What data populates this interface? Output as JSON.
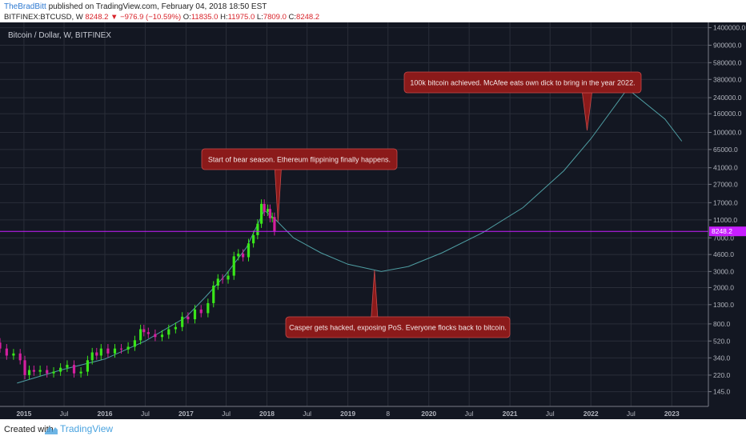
{
  "header": {
    "author": "TheBradBitt",
    "published_text": "published on TradingView.com, February 04, 2018 18:50 EST",
    "symbol": "BITFINEX:BTCUSD, W",
    "last": "8248.2",
    "change": "−976.9 (−10.59%)",
    "o_label": "O:",
    "o_value": "11835.0",
    "h_label": "H:",
    "h_value": "11975.0",
    "l_label": "L:",
    "l_value": "7809.0",
    "c_label": "C:",
    "c_value": "8248.2"
  },
  "footer": {
    "created_with": "Created with",
    "brand": "TradingView"
  },
  "colors": {
    "background": "#131722",
    "grid": "#2a2e39",
    "candle_up": "#39e619",
    "candle_down": "#d41f9f",
    "projection": "#4f9ea3",
    "price_line": "#c81eff",
    "price_tag": "#c81eff",
    "callout_bg": "#8b1a1a",
    "callout_border": "#c94a4a"
  },
  "chart_data": {
    "type": "candlestick",
    "title": "Bitcoin / Dollar, W, BITFINEX",
    "y_scale": "log",
    "ylim": [
      100,
      1600000
    ],
    "xlim": [
      "2014-09-15",
      "2023-06-15"
    ],
    "y_ticks": [
      "1400000.0",
      "900000.0",
      "580000.0",
      "380000.0",
      "240000.0",
      "160000.0",
      "100000.0",
      "65000.0",
      "41000.0",
      "27000.0",
      "17000.0",
      "11000.0",
      "7000.0",
      "4600.0",
      "3000.0",
      "2000.0",
      "1300.0",
      "800.0",
      "520.0",
      "340.0",
      "220.0",
      "145.0"
    ],
    "x_ticks": [
      {
        "label": "2015",
        "date": "2015-01-01",
        "bold": true
      },
      {
        "label": "Jul",
        "date": "2015-07-01",
        "bold": false
      },
      {
        "label": "2016",
        "date": "2016-01-01",
        "bold": true
      },
      {
        "label": "Jul",
        "date": "2016-07-01",
        "bold": false
      },
      {
        "label": "2017",
        "date": "2017-01-01",
        "bold": true
      },
      {
        "label": "Jul",
        "date": "2017-07-01",
        "bold": false
      },
      {
        "label": "2018",
        "date": "2018-01-01",
        "bold": true
      },
      {
        "label": "Jul",
        "date": "2018-07-01",
        "bold": false
      },
      {
        "label": "2019",
        "date": "2019-01-01",
        "bold": true
      },
      {
        "label": "8",
        "date": "2019-07-01",
        "bold": false
      },
      {
        "label": "2020",
        "date": "2020-01-01",
        "bold": true
      },
      {
        "label": "Jul",
        "date": "2020-07-01",
        "bold": false
      },
      {
        "label": "2021",
        "date": "2021-01-01",
        "bold": true
      },
      {
        "label": "Jul",
        "date": "2021-07-01",
        "bold": false
      },
      {
        "label": "2022",
        "date": "2022-01-01",
        "bold": true
      },
      {
        "label": "Jul",
        "date": "2022-07-01",
        "bold": false
      },
      {
        "label": "2023",
        "date": "2023-01-01",
        "bold": true
      }
    ],
    "current_price": 8248.2,
    "current_price_label": "8248.2",
    "candles": [
      [
        "2014-09-15",
        500,
        430
      ],
      [
        "2014-10-15",
        430,
        360
      ],
      [
        "2014-11-15",
        360,
        380
      ],
      [
        "2014-12-15",
        380,
        320
      ],
      [
        "2015-01-05",
        320,
        220
      ],
      [
        "2015-01-25",
        220,
        250
      ],
      [
        "2015-02-15",
        250,
        240
      ],
      [
        "2015-03-15",
        240,
        250
      ],
      [
        "2015-04-15",
        250,
        230
      ],
      [
        "2015-05-15",
        230,
        240
      ],
      [
        "2015-06-15",
        240,
        265
      ],
      [
        "2015-07-15",
        265,
        285
      ],
      [
        "2015-08-15",
        285,
        230
      ],
      [
        "2015-09-15",
        230,
        240
      ],
      [
        "2015-10-15",
        240,
        320
      ],
      [
        "2015-11-05",
        320,
        390
      ],
      [
        "2015-11-25",
        390,
        360
      ],
      [
        "2015-12-15",
        360,
        430
      ],
      [
        "2016-01-15",
        430,
        380
      ],
      [
        "2016-02-15",
        380,
        430
      ],
      [
        "2016-03-15",
        430,
        420
      ],
      [
        "2016-04-15",
        420,
        450
      ],
      [
        "2016-05-15",
        450,
        530
      ],
      [
        "2016-06-10",
        530,
        700
      ],
      [
        "2016-06-25",
        700,
        650
      ],
      [
        "2016-07-15",
        650,
        620
      ],
      [
        "2016-08-15",
        620,
        575
      ],
      [
        "2016-09-15",
        575,
        610
      ],
      [
        "2016-10-15",
        610,
        700
      ],
      [
        "2016-11-15",
        700,
        740
      ],
      [
        "2016-12-15",
        740,
        960
      ],
      [
        "2017-01-10",
        960,
        900
      ],
      [
        "2017-02-10",
        900,
        1150
      ],
      [
        "2017-03-10",
        1150,
        1050
      ],
      [
        "2017-04-10",
        1050,
        1350
      ],
      [
        "2017-05-05",
        1350,
        2100
      ],
      [
        "2017-05-25",
        2100,
        2500
      ],
      [
        "2017-06-15",
        2500,
        2450
      ],
      [
        "2017-07-10",
        2450,
        2700
      ],
      [
        "2017-08-05",
        2700,
        4400
      ],
      [
        "2017-08-25",
        4400,
        4700
      ],
      [
        "2017-09-15",
        4700,
        4300
      ],
      [
        "2017-10-10",
        4300,
        6100
      ],
      [
        "2017-11-01",
        6100,
        7500
      ],
      [
        "2017-11-20",
        7500,
        10000
      ],
      [
        "2017-12-07",
        10000,
        16500
      ],
      [
        "2017-12-20",
        16500,
        13500
      ],
      [
        "2018-01-05",
        13500,
        14500
      ],
      [
        "2018-01-15",
        14500,
        11500
      ],
      [
        "2018-01-25",
        11500,
        11835
      ],
      [
        "2018-02-04",
        11835,
        8248
      ]
    ],
    "projection": [
      [
        "2014-12-01",
        180
      ],
      [
        "2015-06-15",
        250
      ],
      [
        "2016-01-01",
        330
      ],
      [
        "2016-07-01",
        520
      ],
      [
        "2017-01-01",
        950
      ],
      [
        "2017-04-01",
        1600
      ],
      [
        "2017-07-01",
        2800
      ],
      [
        "2017-10-01",
        5500
      ],
      [
        "2017-12-20",
        14000
      ],
      [
        "2018-02-10",
        11000
      ],
      [
        "2018-05-01",
        7000
      ],
      [
        "2018-09-01",
        4800
      ],
      [
        "2019-01-01",
        3600
      ],
      [
        "2019-06-01",
        3000
      ],
      [
        "2019-10-01",
        3400
      ],
      [
        "2020-03-01",
        4800
      ],
      [
        "2020-09-01",
        8000
      ],
      [
        "2021-03-01",
        15000
      ],
      [
        "2021-09-01",
        38000
      ],
      [
        "2022-01-01",
        85000
      ],
      [
        "2022-06-15",
        300000
      ],
      [
        "2022-12-01",
        140000
      ],
      [
        "2023-02-15",
        80000
      ]
    ],
    "annotations": [
      {
        "text": "100k bitcoin achieved. McAfee eats own dick to bring in the year 2022.",
        "target_date": "2021-12-15",
        "target_price": 105000
      },
      {
        "text": "Start of bear season. Ethereum flippining finally happens.",
        "target_date": "2018-02-20",
        "target_price": 10500
      },
      {
        "text": "Casper gets hacked, exposing PoS. Everyone flocks back to bitcoin.",
        "target_date": "2019-05-01",
        "target_price": 3100
      }
    ]
  }
}
